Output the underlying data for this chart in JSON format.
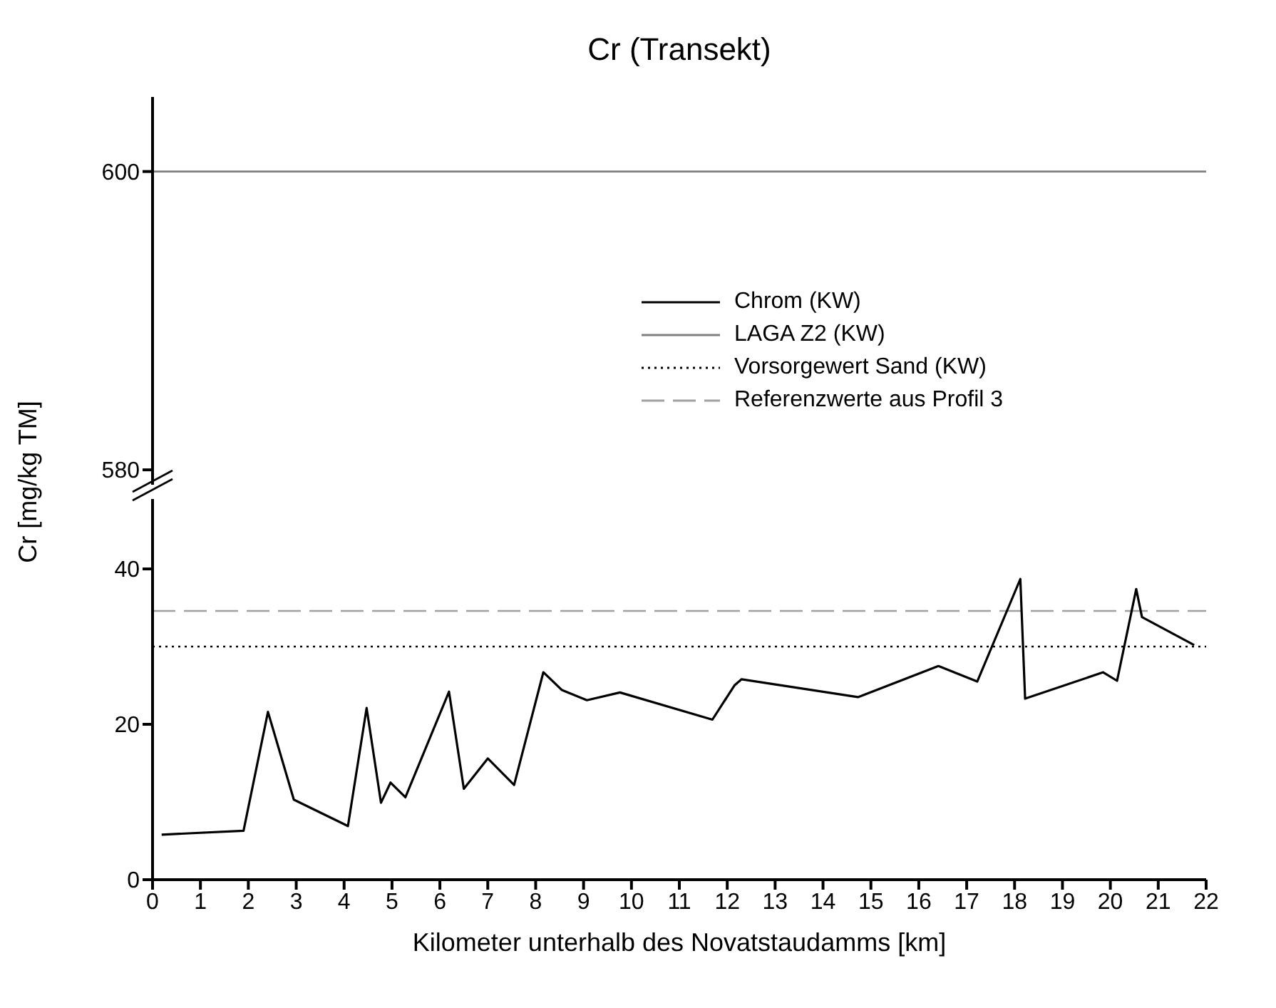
{
  "chart_data": [
    {
      "type": "line",
      "title": "Cr (Transekt)",
      "xlim": [
        0,
        22
      ],
      "ylim": [
        579,
        605
      ],
      "yticks": [
        580,
        600
      ],
      "tick_labels": "y",
      "ref_lines": [
        {
          "axis": "y",
          "value": 600,
          "label": "LAGA Z2 (KW)",
          "color": "#808080",
          "line_style": "solid"
        }
      ]
    },
    {
      "type": "line",
      "xlabel": "Kilometer unterhalb des Novatstaudamms [km]",
      "ylabel": "Cr [mg/kg TM]",
      "xlim": [
        0,
        22
      ],
      "xticks": [
        0,
        1,
        2,
        3,
        4,
        5,
        6,
        7,
        8,
        9,
        10,
        11,
        12,
        13,
        14,
        15,
        16,
        17,
        18,
        19,
        20,
        21,
        22
      ],
      "ylim": [
        0,
        49
      ],
      "yticks": [
        0,
        20,
        40
      ],
      "marker": "none",
      "legend": "right",
      "series": [
        {
          "name": "Chrom (KW)",
          "color": "#000000",
          "line_style": "solid",
          "x": [
            0.19,
            1.9,
            2.41,
            2.95,
            4.08,
            4.47,
            4.77,
            4.97,
            5.28,
            6.19,
            6.5,
            7.0,
            7.55,
            8.16,
            8.55,
            9.07,
            9.76,
            11.69,
            12.15,
            12.3,
            14.73,
            16.41,
            17.22,
            18.12,
            18.22,
            19.85,
            20.14,
            20.54,
            20.66,
            21.75
          ],
          "values": [
            5.8,
            6.3,
            21.6,
            10.3,
            6.9,
            22.1,
            9.9,
            12.5,
            10.6,
            24.2,
            11.7,
            15.6,
            12.2,
            26.7,
            24.4,
            23.1,
            24.1,
            20.6,
            25.0,
            25.8,
            23.5,
            27.5,
            25.5,
            38.7,
            23.3,
            26.7,
            25.6,
            37.4,
            33.8,
            30.2
          ]
        }
      ],
      "ref_lines": [
        {
          "axis": "y",
          "value": 30,
          "label": "Vorsorgewert Sand (KW)",
          "color": "#000000",
          "line_style": "dotted"
        },
        {
          "axis": "y",
          "value": 34.6,
          "label": "Referenzwerte aus Profil 3",
          "color": "#a0a0a0",
          "line_style": "dashed"
        }
      ]
    }
  ]
}
